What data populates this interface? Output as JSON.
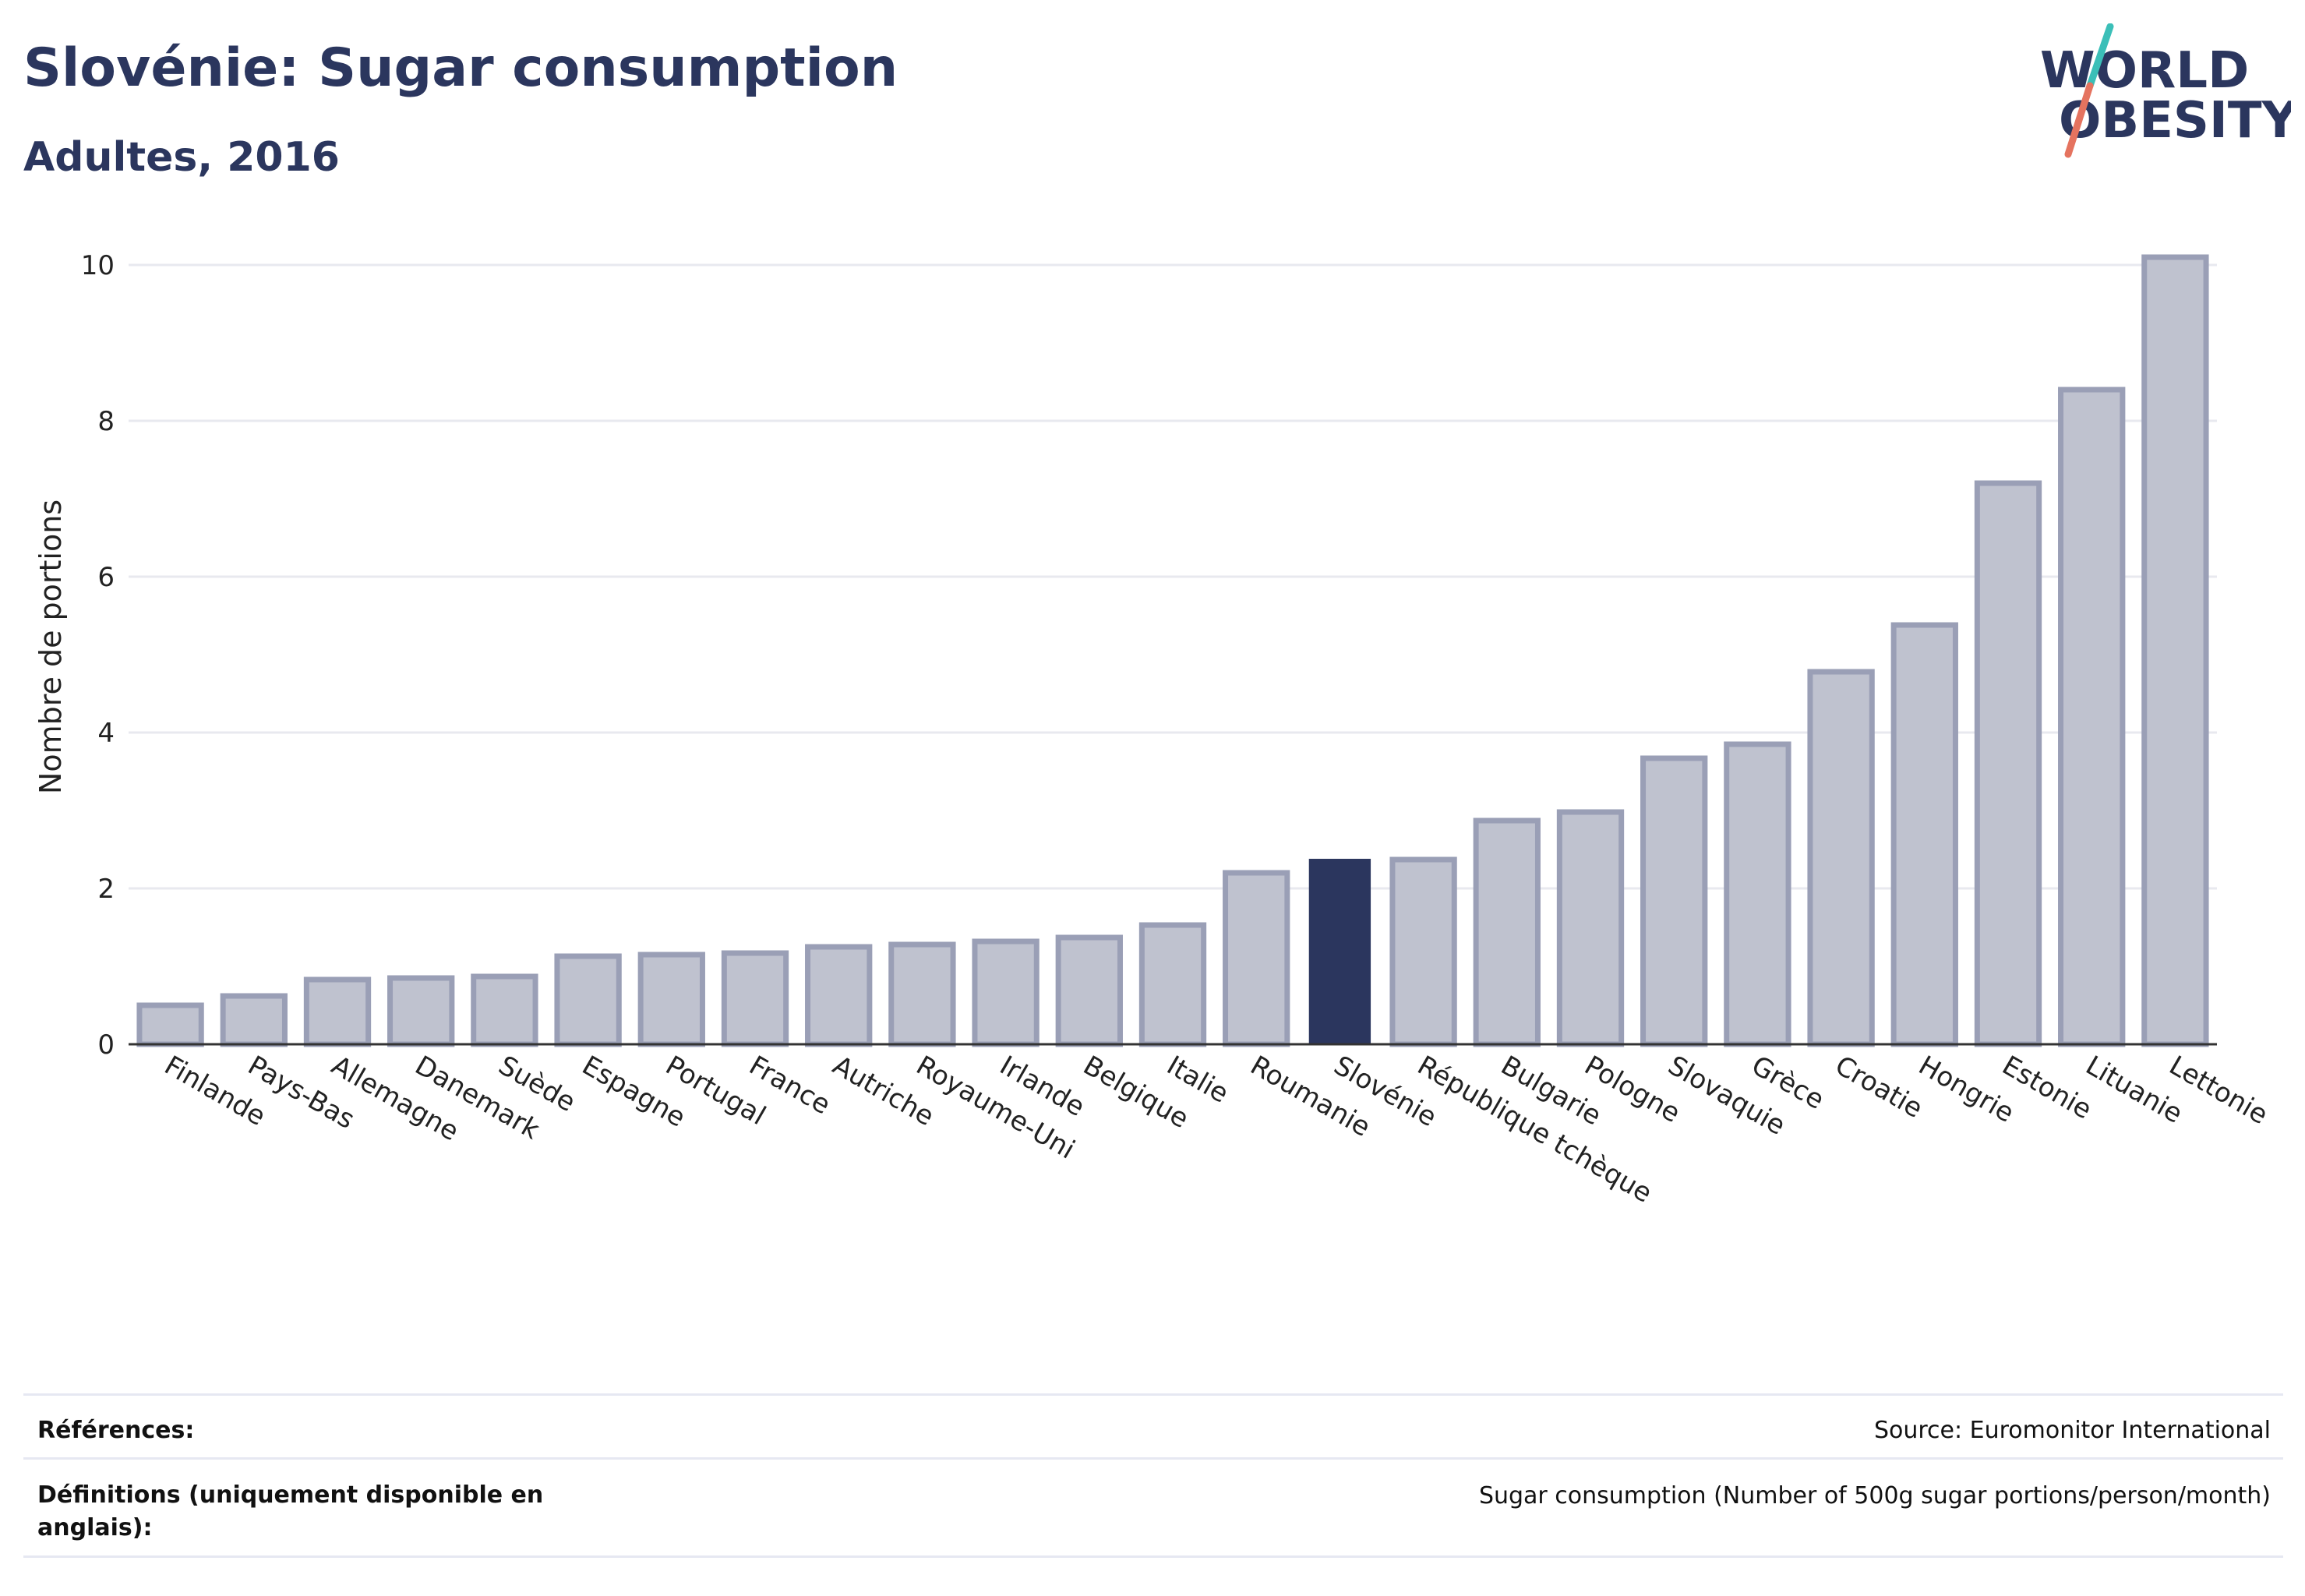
{
  "header": {
    "title": "Slovénie: Sugar consumption",
    "subtitle": "Adultes, 2016"
  },
  "logo": {
    "line1": "WORLD",
    "line2": "OBESITY",
    "colors": {
      "text": "#2b365e",
      "slash_top": "#3bbfb8",
      "slash_bottom": "#e5735f"
    }
  },
  "chart_data": {
    "type": "bar",
    "ylabel": "Nombre de portions",
    "xlabel": "",
    "ylim": [
      0,
      10.4
    ],
    "yticks": [
      0,
      2,
      4,
      6,
      8,
      10
    ],
    "grid": true,
    "highlight": "Slovénie",
    "colors": {
      "bar": "#bfc2cf",
      "bar_edge": "#9a9fb6",
      "highlight": "#2b365e",
      "grid": "#e8e9ef",
      "axis": "#333333"
    },
    "categories": [
      "Finlande",
      "Pays-Bas",
      "Allemagne",
      "Danemark",
      "Suède",
      "Espagne",
      "Portugal",
      "France",
      "Autriche",
      "Royaume-Uni",
      "Irlande",
      "Belgique",
      "Italie",
      "Roumanie",
      "Slovénie",
      "République tchèque",
      "Bulgarie",
      "Pologne",
      "Slovaquie",
      "Grèce",
      "Croatie",
      "Hongrie",
      "Estonie",
      "Lituanie",
      "Lettonie"
    ],
    "values": [
      0.5,
      0.62,
      0.83,
      0.85,
      0.87,
      1.13,
      1.15,
      1.17,
      1.25,
      1.28,
      1.32,
      1.37,
      1.53,
      2.2,
      2.38,
      2.37,
      2.87,
      2.98,
      3.67,
      3.85,
      4.78,
      5.38,
      7.2,
      8.4,
      10.1
    ]
  },
  "footer": {
    "references_label": "Références:",
    "references_value": "Source: Euromonitor International",
    "definitions_label": "Définitions (uniquement disponible en anglais):",
    "definitions_value": "Sugar consumption (Number of 500g sugar portions/person/month)"
  }
}
